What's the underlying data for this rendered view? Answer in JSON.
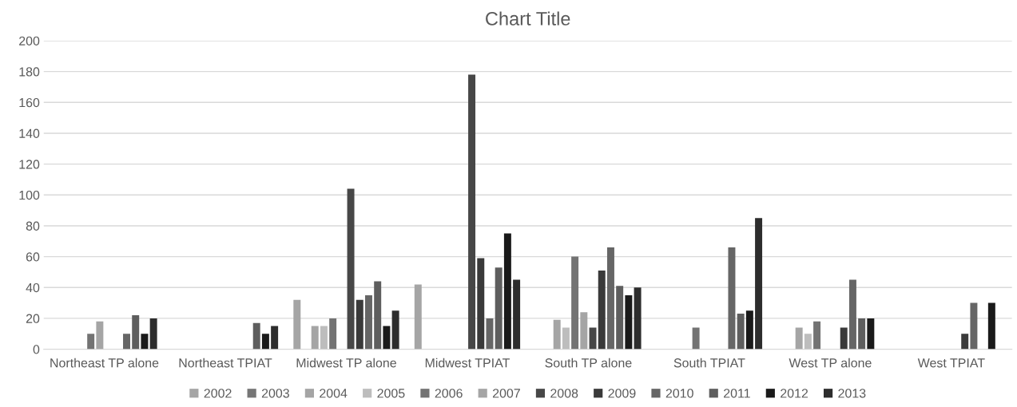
{
  "chart_data": {
    "type": "bar",
    "title": "Chart Title",
    "categories": [
      "Northeast TP alone",
      "Northeast TPIAT",
      "Midwest TP alone",
      "Midwest TPIAT",
      "South TP alone",
      "South TPIAT",
      "West TP alone",
      "West TPIAT"
    ],
    "series": [
      {
        "name": "2002",
        "color": "#a5a5a5",
        "values": [
          null,
          null,
          32,
          42,
          null,
          null,
          null,
          null
        ]
      },
      {
        "name": "2003",
        "color": "#767676",
        "values": [
          null,
          null,
          null,
          null,
          null,
          null,
          null,
          null
        ]
      },
      {
        "name": "2004",
        "color": "#a5a5a5",
        "values": [
          null,
          null,
          15,
          null,
          19,
          null,
          14,
          null
        ]
      },
      {
        "name": "2005",
        "color": "#bdbdbd",
        "values": [
          null,
          null,
          15,
          null,
          14,
          null,
          10,
          null
        ]
      },
      {
        "name": "2006",
        "color": "#737373",
        "values": [
          10,
          null,
          20,
          null,
          60,
          14,
          18,
          null
        ]
      },
      {
        "name": "2007",
        "color": "#a5a5a5",
        "values": [
          18,
          null,
          null,
          null,
          24,
          null,
          null,
          null
        ]
      },
      {
        "name": "2008",
        "color": "#474747",
        "values": [
          null,
          null,
          104,
          178,
          14,
          null,
          null,
          null
        ]
      },
      {
        "name": "2009",
        "color": "#3a3a3a",
        "values": [
          null,
          null,
          32,
          59,
          51,
          null,
          14,
          10
        ]
      },
      {
        "name": "2010",
        "color": "#666666",
        "values": [
          10,
          null,
          35,
          20,
          66,
          66,
          45,
          30
        ]
      },
      {
        "name": "2011",
        "color": "#5e5e5e",
        "values": [
          22,
          17,
          44,
          53,
          41,
          23,
          20,
          null
        ]
      },
      {
        "name": "2012",
        "color": "#1a1a1a",
        "values": [
          10,
          10,
          15,
          75,
          35,
          25,
          20,
          30
        ]
      },
      {
        "name": "2013",
        "color": "#2d2d2d",
        "values": [
          20,
          15,
          25,
          45,
          40,
          85,
          null,
          null
        ]
      }
    ],
    "ylim": [
      0,
      200
    ],
    "yticks": [
      0,
      20,
      40,
      60,
      80,
      100,
      120,
      140,
      160,
      180,
      200
    ],
    "grid": "y",
    "legend": "bottom"
  }
}
